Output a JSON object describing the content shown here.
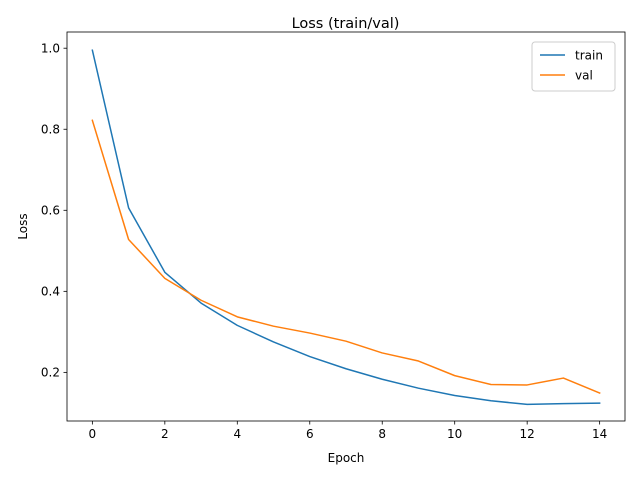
{
  "chart_data": {
    "type": "line",
    "title": "Loss (train/val)",
    "xlabel": "Epoch",
    "ylabel": "Loss",
    "x": [
      0,
      1,
      2,
      3,
      4,
      5,
      6,
      7,
      8,
      9,
      10,
      11,
      12,
      13,
      14
    ],
    "xlim": [
      -0.7,
      14.7
    ],
    "ylim": [
      0.08,
      1.04
    ],
    "xticks": [
      0,
      2,
      4,
      6,
      8,
      10,
      12,
      14
    ],
    "yticks": [
      0.2,
      0.4,
      0.6,
      0.8,
      1.0
    ],
    "xtick_labels": [
      "0",
      "2",
      "4",
      "6",
      "8",
      "10",
      "12",
      "14"
    ],
    "ytick_labels": [
      "0.2",
      "0.4",
      "0.6",
      "0.8",
      "1.0"
    ],
    "grid": false,
    "legend_position": "top-right",
    "series": [
      {
        "name": "train",
        "color": "#1f77b4",
        "values": [
          0.995,
          0.606,
          0.447,
          0.371,
          0.316,
          0.275,
          0.239,
          0.209,
          0.183,
          0.161,
          0.143,
          0.13,
          0.121,
          0.123,
          0.124
        ]
      },
      {
        "name": "val",
        "color": "#ff7f0e",
        "values": [
          0.822,
          0.528,
          0.432,
          0.378,
          0.337,
          0.314,
          0.297,
          0.277,
          0.248,
          0.228,
          0.192,
          0.17,
          0.169,
          0.186,
          0.149
        ]
      }
    ]
  }
}
